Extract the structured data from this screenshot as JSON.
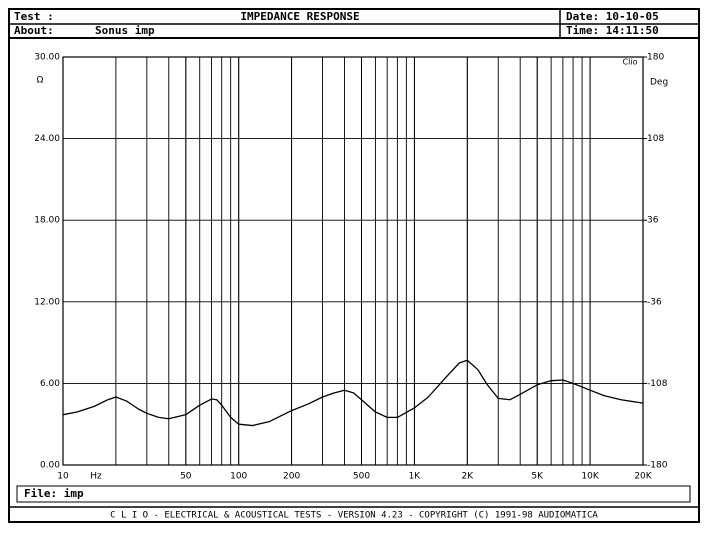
{
  "header": {
    "test_label": "Test :",
    "about_label": "About:",
    "about_value": "Sonus imp",
    "date": "Date: 10-10-05",
    "time": "Time: 14:11:50"
  },
  "footer": {
    "file": "File: imp",
    "banner": "C L I O  -  ELECTRICAL & ACOUSTICAL TESTS  -  VERSION 4.23  -  COPYRIGHT (C) 1991-98 AUDIOMATICA"
  },
  "chart_data": {
    "type": "line",
    "title": "IMPEDANCE RESPONSE",
    "corner_label": "Clio",
    "x_unit": "Hz",
    "y_unit": "Ω",
    "y2_unit": "Deg",
    "xscale": "log",
    "grid": true,
    "xlim": [
      10,
      20000
    ],
    "xticks": [
      10,
      50,
      100,
      200,
      500,
      {
        "value": 1000,
        "label": "1K"
      },
      {
        "value": 2000,
        "label": "2K"
      },
      {
        "value": 5000,
        "label": "5K"
      },
      {
        "value": 10000,
        "label": "10K"
      },
      {
        "value": 20000,
        "label": "20K"
      }
    ],
    "ylim": [
      0,
      30
    ],
    "yticks": [
      {
        "value": 0,
        "label": "0.00"
      },
      {
        "value": 6,
        "label": "6.00"
      },
      {
        "value": 12,
        "label": "12.00"
      },
      {
        "value": 18,
        "label": "18.00"
      },
      {
        "value": 24,
        "label": "24.00"
      },
      {
        "value": 30,
        "label": "30.00"
      }
    ],
    "y2lim": [
      -180,
      180
    ],
    "y2ticks": [
      -180,
      -108,
      -36,
      36,
      108,
      180
    ],
    "series": [
      {
        "color": "#000000",
        "x": [
          10,
          12,
          15,
          18,
          20,
          23,
          27,
          30,
          35,
          40,
          50,
          60,
          70,
          75,
          80,
          90,
          100,
          120,
          150,
          200,
          250,
          300,
          350,
          400,
          450,
          500,
          600,
          700,
          800,
          1000,
          1200,
          1500,
          1800,
          2000,
          2300,
          2600,
          3000,
          3500,
          4000,
          5000,
          6000,
          7000,
          8000,
          10000,
          12000,
          15000,
          20000
        ],
        "values": [
          3.7,
          3.9,
          4.3,
          4.8,
          5.0,
          4.7,
          4.1,
          3.8,
          3.5,
          3.4,
          3.7,
          4.4,
          4.85,
          4.8,
          4.4,
          3.5,
          3.0,
          2.9,
          3.2,
          4.0,
          4.5,
          5.0,
          5.3,
          5.5,
          5.3,
          4.8,
          3.9,
          3.5,
          3.5,
          4.2,
          5.0,
          6.4,
          7.5,
          7.7,
          7.0,
          5.9,
          4.9,
          4.8,
          5.2,
          5.9,
          6.2,
          6.25,
          6.0,
          5.5,
          5.1,
          4.8,
          4.55
        ]
      }
    ]
  }
}
